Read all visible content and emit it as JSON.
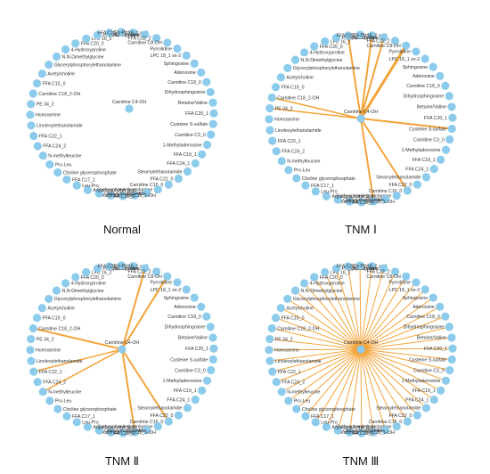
{
  "colors": {
    "node": "#8ccbec",
    "edge": "#f3a43a",
    "label": "#333333"
  },
  "nodes": [
    "LPC 18_2 sn-1",
    "Glycated valine",
    "FFA C22_2",
    "Carnitine C8-OH",
    "Pyrrolidine",
    "LPC 18_1 sn-2",
    "Sphingosine",
    "Adenosine",
    "Carnitine C18_0",
    "Dihydrosphingosine",
    "Betaine/Valine",
    "FFA C20_1",
    "Cysteine S-sulfate",
    "Carnitine C3_0",
    "1-Methyladenosine",
    "FFA C19_1",
    "FFA C24_1",
    "Stearoylethanolamide",
    "FFA C22_0",
    "Carnitine C16_0",
    "O-phosphorylethanolamine",
    "Proline",
    "Carnitine C18_1-OH",
    "FFA C18_1",
    "Xanthine",
    "Oleoylethanolamide",
    "Argininosuccinic acid",
    "Leu-Pro",
    "FFA C17_1",
    "Choline glycerophosphate",
    "Pro-Leu",
    "N-methylleucine",
    "FFA C24_2",
    "FFA C22_1",
    "Linoleoylethanolamide",
    "Homoserine",
    "PE 34_2",
    "Carnitine C18_2-OH",
    "FFA C15_0",
    "Acetylcholine",
    "Glycerylphosphorylethanolamine",
    "N,N-Dimethylglycine",
    "4-Hydroxyproline",
    "FFA C20_0",
    "LPE 16_2",
    "Phytosphingosine",
    "FFA C24_0",
    "Gly-Pro"
  ],
  "center_node": "Carnitine C4-OH",
  "panels": [
    {
      "title": "Normal",
      "links": []
    },
    {
      "title": "TNM Ⅰ",
      "links": [
        {
          "target": "Carnitine C8-OH",
          "weight": 3
        },
        {
          "target": "LPC 18_2 sn-1",
          "weight": 2
        },
        {
          "target": "Glycated valine",
          "weight": 2
        },
        {
          "target": "FFA C24_0",
          "weight": 2
        },
        {
          "target": "Carnitine C18_2-OH",
          "weight": 1.5
        },
        {
          "target": "PE 34_2",
          "weight": 1.5
        },
        {
          "target": "Cysteine S-sulfate",
          "weight": 2
        },
        {
          "target": "Carnitine C16_0",
          "weight": 2
        },
        {
          "target": "Carnitine C18_1-OH",
          "weight": 2
        }
      ]
    },
    {
      "title": "TNM Ⅱ",
      "links": [
        {
          "target": "Carnitine C8-OH",
          "weight": 2
        },
        {
          "target": "Glycated valine",
          "weight": 2
        },
        {
          "target": "Carnitine C18_2-OH",
          "weight": 2
        },
        {
          "target": "FFA C22_1",
          "weight": 1.5
        },
        {
          "target": "N-methylleucine",
          "weight": 1.5
        },
        {
          "target": "Carnitine C16_0",
          "weight": 2
        },
        {
          "target": "Carnitine C18_1-OH",
          "weight": 2
        }
      ]
    },
    {
      "title": "TNM Ⅲ",
      "links": [
        {
          "target": "LPC 18_2 sn-1",
          "weight": 1
        },
        {
          "target": "Glycated valine",
          "weight": 1
        },
        {
          "target": "FFA C22_2",
          "weight": 1
        },
        {
          "target": "Carnitine C8-OH",
          "weight": 1
        },
        {
          "target": "Pyrrolidine",
          "weight": 1
        },
        {
          "target": "LPC 18_1 sn-2",
          "weight": 1
        },
        {
          "target": "Sphingosine",
          "weight": 1
        },
        {
          "target": "Adenosine",
          "weight": 1
        },
        {
          "target": "Carnitine C18_0",
          "weight": 1
        },
        {
          "target": "Dihydrosphingosine",
          "weight": 1
        },
        {
          "target": "Betaine/Valine",
          "weight": 1
        },
        {
          "target": "FFA C20_1",
          "weight": 1
        },
        {
          "target": "Cysteine S-sulfate",
          "weight": 1
        },
        {
          "target": "Carnitine C3_0",
          "weight": 1
        },
        {
          "target": "1-Methyladenosine",
          "weight": 1
        },
        {
          "target": "FFA C19_1",
          "weight": 1
        },
        {
          "target": "FFA C24_1",
          "weight": 1
        },
        {
          "target": "Stearoylethanolamide",
          "weight": 1
        },
        {
          "target": "FFA C22_0",
          "weight": 1
        },
        {
          "target": "Carnitine C16_0",
          "weight": 1
        },
        {
          "target": "O-phosphorylethanolamine",
          "weight": 1
        },
        {
          "target": "Proline",
          "weight": 1
        },
        {
          "target": "Carnitine C18_1-OH",
          "weight": 1
        },
        {
          "target": "FFA C18_1",
          "weight": 1
        },
        {
          "target": "Xanthine",
          "weight": 1
        },
        {
          "target": "Oleoylethanolamide",
          "weight": 1
        },
        {
          "target": "Argininosuccinic acid",
          "weight": 1
        },
        {
          "target": "Leu-Pro",
          "weight": 1
        },
        {
          "target": "FFA C17_1",
          "weight": 1
        },
        {
          "target": "Choline glycerophosphate",
          "weight": 1
        },
        {
          "target": "Pro-Leu",
          "weight": 1
        },
        {
          "target": "N-methylleucine",
          "weight": 1
        },
        {
          "target": "FFA C24_2",
          "weight": 1
        },
        {
          "target": "FFA C22_1",
          "weight": 1
        },
        {
          "target": "Linoleoylethanolamide",
          "weight": 1
        },
        {
          "target": "Homoserine",
          "weight": 1
        },
        {
          "target": "PE 34_2",
          "weight": 1
        },
        {
          "target": "Carnitine C18_2-OH",
          "weight": 1
        },
        {
          "target": "FFA C15_0",
          "weight": 1
        },
        {
          "target": "Acetylcholine",
          "weight": 1
        },
        {
          "target": "Glycerylphosphorylethanolamine",
          "weight": 1
        },
        {
          "target": "N,N-Dimethylglycine",
          "weight": 1
        },
        {
          "target": "4-Hydroxyproline",
          "weight": 1
        },
        {
          "target": "FFA C20_0",
          "weight": 1
        },
        {
          "target": "LPE 16_2",
          "weight": 1
        },
        {
          "target": "Phytosphingosine",
          "weight": 1
        },
        {
          "target": "FFA C24_0",
          "weight": 1
        },
        {
          "target": "Gly-Pro",
          "weight": 1
        }
      ]
    }
  ]
}
